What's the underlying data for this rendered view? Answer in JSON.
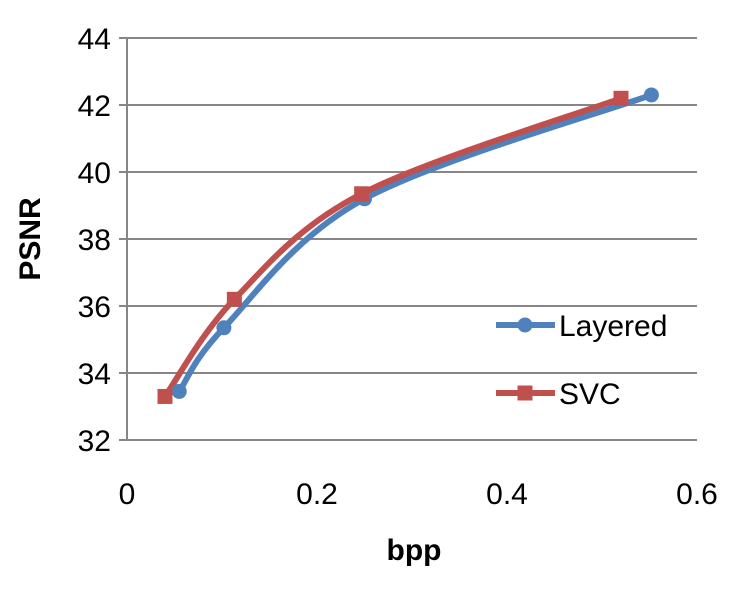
{
  "chart_data": {
    "type": "line",
    "xlabel": "bpp",
    "ylabel": "PSNR",
    "xlim": [
      0,
      0.6
    ],
    "ylim": [
      32,
      44
    ],
    "xticks": [
      0,
      0.2,
      0.4,
      0.6
    ],
    "xtick_labels": [
      "0",
      "0.2",
      "0.4",
      "0.6"
    ],
    "yticks": [
      32,
      34,
      36,
      38,
      40,
      42,
      44
    ],
    "ytick_labels": [
      "32",
      "34",
      "36",
      "38",
      "40",
      "42",
      "44"
    ],
    "grid": "horizontal",
    "legend_position": "right",
    "series": [
      {
        "name": "Layered",
        "color": "#4F81BD",
        "marker": "circle",
        "x": [
          0.055,
          0.102,
          0.25,
          0.552
        ],
        "y": [
          33.45,
          35.35,
          39.2,
          42.3
        ]
      },
      {
        "name": "SVC",
        "color": "#C0504D",
        "marker": "square",
        "x": [
          0.04,
          0.113,
          0.247,
          0.52
        ],
        "y": [
          33.3,
          36.2,
          39.35,
          42.2
        ]
      }
    ]
  }
}
